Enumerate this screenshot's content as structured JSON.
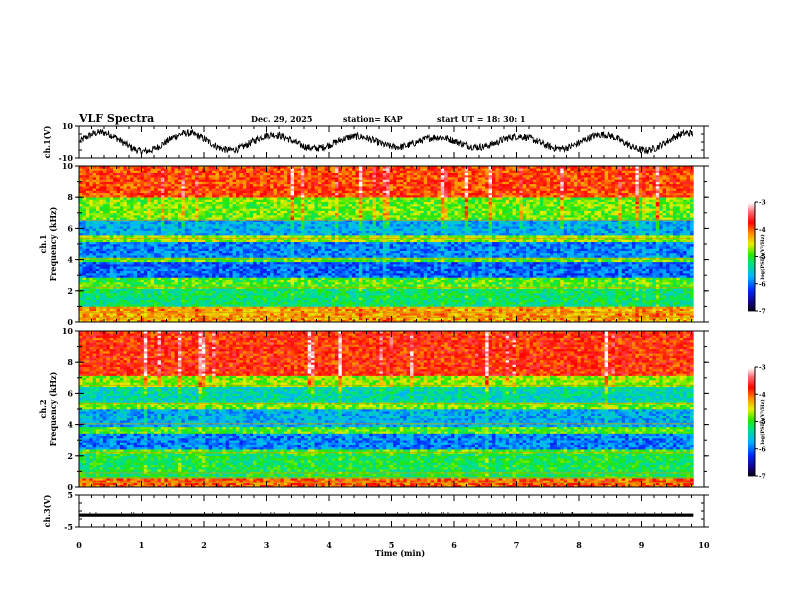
{
  "header": {
    "title": "VLF Spectra",
    "date": "Dec. 29, 2025",
    "station": "station= KAP",
    "start": "start  UT  =   18: 30: 1"
  },
  "chart_data": [
    {
      "type": "line",
      "name": "ch1-waveform",
      "ylabel": "ch.1(V)",
      "ylim": [
        -10,
        10
      ],
      "yticks": [
        "10",
        "-10"
      ],
      "xlim": [
        0,
        10
      ],
      "data_end_min": 9.83,
      "description_values": "noisy oscillating voltage, roughly -8 to +7 V"
    },
    {
      "type": "heatmap",
      "name": "ch1-spectrogram",
      "ylabel_line1": "ch.1",
      "ylabel_line2": "Frequency  (kHz)",
      "ylim": [
        0,
        10
      ],
      "yticks": [
        "0",
        "2",
        "4",
        "6",
        "8",
        "10"
      ],
      "xlim": [
        0,
        10
      ],
      "data_end_min": 9.83,
      "colorbar": {
        "label": "log(PSD)(V²/Hz)",
        "range": [
          -7,
          -3
        ],
        "ticks": [
          "-3",
          "-4",
          "-5",
          "-6",
          "-7"
        ]
      },
      "bands": [
        {
          "f0": 8.0,
          "f1": 10.0,
          "level": -3.9
        },
        {
          "f0": 6.6,
          "f1": 8.0,
          "level": -4.8
        },
        {
          "f0": 5.6,
          "f1": 6.6,
          "level": -5.7
        },
        {
          "f0": 5.2,
          "f1": 5.6,
          "level": -4.7
        },
        {
          "f0": 4.2,
          "f1": 5.2,
          "level": -5.9
        },
        {
          "f0": 3.9,
          "f1": 4.2,
          "level": -4.9
        },
        {
          "f0": 2.8,
          "f1": 3.9,
          "level": -6.0
        },
        {
          "f0": 2.1,
          "f1": 2.8,
          "level": -4.9
        },
        {
          "f0": 1.0,
          "f1": 2.1,
          "level": -5.2
        },
        {
          "f0": 0.0,
          "f1": 1.0,
          "level": -4.2
        }
      ]
    },
    {
      "type": "heatmap",
      "name": "ch2-spectrogram",
      "ylabel_line1": "ch.2",
      "ylabel_line2": "Frequency  (kHz)",
      "ylim": [
        0,
        10
      ],
      "yticks": [
        "0",
        "2",
        "4",
        "6",
        "8",
        "10"
      ],
      "xlim": [
        0,
        10
      ],
      "data_end_min": 9.83,
      "colorbar": {
        "label": "log(PSD)(V²/Hz)",
        "range": [
          -7,
          -3
        ],
        "ticks": [
          "-3",
          "-4",
          "-5",
          "-6",
          "-7"
        ]
      },
      "bands": [
        {
          "f0": 7.2,
          "f1": 10.0,
          "level": -3.8
        },
        {
          "f0": 6.4,
          "f1": 7.2,
          "level": -4.7
        },
        {
          "f0": 5.4,
          "f1": 6.4,
          "level": -5.4
        },
        {
          "f0": 5.0,
          "f1": 5.4,
          "level": -4.8
        },
        {
          "f0": 3.8,
          "f1": 5.0,
          "level": -5.7
        },
        {
          "f0": 3.5,
          "f1": 3.8,
          "level": -4.9
        },
        {
          "f0": 2.5,
          "f1": 3.5,
          "level": -5.9
        },
        {
          "f0": 2.1,
          "f1": 2.5,
          "level": -4.9
        },
        {
          "f0": 0.6,
          "f1": 2.1,
          "level": -5.1
        },
        {
          "f0": 0.0,
          "f1": 0.6,
          "level": -4.0
        }
      ]
    },
    {
      "type": "line",
      "name": "ch3-waveform",
      "ylabel": "ch.3(V)",
      "ylim": [
        -5,
        5
      ],
      "yticks": [
        "5",
        "-5"
      ],
      "xlim": [
        0,
        10
      ],
      "data_end_min": 9.83,
      "band_range_v": [
        -1.8,
        -0.8
      ]
    }
  ],
  "xaxis": {
    "label": "Time  (min)",
    "ticks": [
      "0",
      "1",
      "2",
      "3",
      "4",
      "5",
      "6",
      "7",
      "8",
      "9",
      "10"
    ]
  }
}
